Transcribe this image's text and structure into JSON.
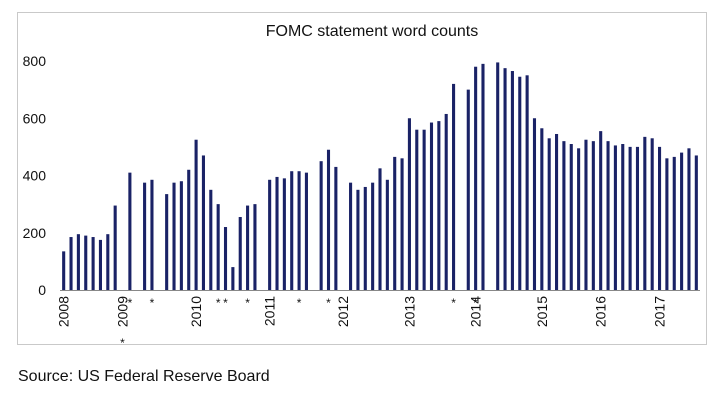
{
  "source_note": "Source: US Federal Reserve Board",
  "chart_data": {
    "type": "bar",
    "title": "FOMC statement word counts",
    "xlabel": "",
    "ylabel": "",
    "ylim": [
      0,
      800
    ],
    "yticks": [
      0,
      200,
      400,
      600,
      800
    ],
    "bar_color": "#1a2266",
    "grid": false,
    "series": [
      {
        "values": [
          135,
          185,
          195,
          190,
          185,
          175,
          195,
          295,
          0,
          410,
          0,
          375,
          385,
          0,
          335,
          375,
          380,
          420,
          525,
          470,
          350,
          300,
          220,
          80,
          255,
          295,
          300,
          0,
          385,
          395,
          390,
          415,
          415,
          410,
          0,
          450,
          490,
          430,
          0,
          375,
          350,
          360,
          375,
          425,
          385,
          465,
          460,
          600,
          560,
          560,
          585,
          590,
          615,
          720,
          0,
          700,
          780,
          790,
          0,
          795,
          775,
          765,
          745,
          750,
          600,
          565,
          530,
          545,
          520,
          510,
          495,
          525,
          520,
          555,
          520,
          505,
          510,
          500,
          500,
          535,
          530,
          500,
          460,
          465,
          480,
          495,
          470
        ]
      }
    ],
    "x_labels": [
      "2008",
      "2009",
      "2010",
      "2011",
      "2012",
      "2013",
      "2014",
      "2015",
      "2016",
      "2017"
    ],
    "x_label_slots": [
      0,
      8,
      18,
      28,
      38,
      47,
      56,
      65,
      73,
      81
    ],
    "asterisk_slots": [
      8,
      9,
      12,
      21,
      22,
      25,
      32,
      36,
      53,
      56
    ]
  }
}
